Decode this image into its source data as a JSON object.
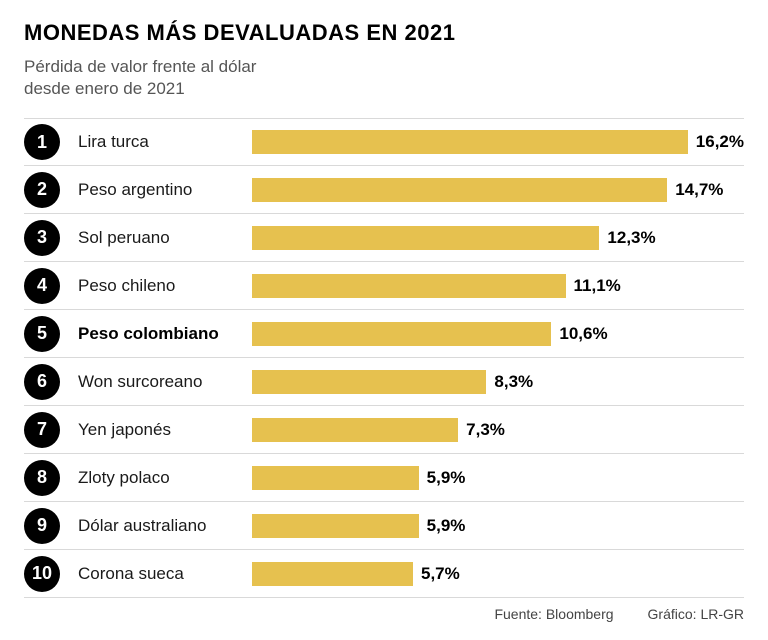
{
  "title": "MONEDAS MÁS DEVALUADAS EN 2021",
  "subtitle": "Pérdida de valor frente al dólar desde enero de 2021",
  "chart": {
    "type": "bar-horizontal",
    "bar_color": "#e6c14f",
    "row_divider_color": "#d9d9d9",
    "rank_bg_color": "#000000",
    "rank_text_color": "#ffffff",
    "value_color": "#000000",
    "value_fontsize": 17,
    "value_fontweight": 800,
    "label_fontsize": 17,
    "title_fontsize": 22,
    "subtitle_fontsize": 17,
    "max_bar_ratio": 0.93,
    "items": [
      {
        "rank": "1",
        "label": "Lira turca",
        "value": 16.2,
        "value_text": "16,2%",
        "highlight": false
      },
      {
        "rank": "2",
        "label": "Peso argentino",
        "value": 14.7,
        "value_text": "14,7%",
        "highlight": false
      },
      {
        "rank": "3",
        "label": "Sol peruano",
        "value": 12.3,
        "value_text": "12,3%",
        "highlight": false
      },
      {
        "rank": "4",
        "label": "Peso chileno",
        "value": 11.1,
        "value_text": "11,1%",
        "highlight": false
      },
      {
        "rank": "5",
        "label": "Peso colombiano",
        "value": 10.6,
        "value_text": "10,6%",
        "highlight": true
      },
      {
        "rank": "6",
        "label": "Won surcoreano",
        "value": 8.3,
        "value_text": "8,3%",
        "highlight": false
      },
      {
        "rank": "7",
        "label": "Yen japonés",
        "value": 7.3,
        "value_text": "7,3%",
        "highlight": false
      },
      {
        "rank": "8",
        "label": "Zloty polaco",
        "value": 5.9,
        "value_text": "5,9%",
        "highlight": false
      },
      {
        "rank": "9",
        "label": "Dólar australiano",
        "value": 5.9,
        "value_text": "5,9%",
        "highlight": false
      },
      {
        "rank": "10",
        "label": "Corona sueca",
        "value": 5.7,
        "value_text": "5,7%",
        "highlight": false
      }
    ]
  },
  "footer": {
    "source_label": "Fuente:",
    "source_value": "Bloomberg",
    "graphic_label": "Gráfico:",
    "graphic_value": "LR-GR"
  }
}
